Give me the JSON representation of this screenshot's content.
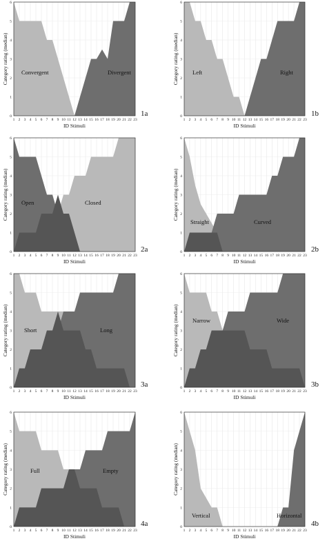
{
  "figure": {
    "xlabel": "ID Stimuli",
    "ylabel": "Category rating (median)"
  },
  "chart_data": [
    {
      "id": "1a",
      "type": "area",
      "x": [
        1,
        2,
        3,
        4,
        5,
        6,
        7,
        8,
        9,
        10,
        11,
        12,
        13,
        14,
        15,
        16,
        17,
        18,
        19,
        20,
        21,
        22,
        23
      ],
      "xlim": [
        1,
        23
      ],
      "ylim": [
        0,
        6
      ],
      "series": [
        {
          "name": "Convergent",
          "color": "#b9b9b9",
          "values": [
            6,
            5,
            5,
            5,
            5,
            5,
            4,
            4,
            3,
            2,
            1,
            0,
            0,
            0,
            0,
            0,
            0,
            0,
            0,
            0,
            0,
            0,
            0
          ]
        },
        {
          "name": "Divergent",
          "color": "#6e6e6e",
          "values": [
            0,
            0,
            0,
            0,
            0,
            0,
            0,
            0,
            0,
            0,
            0,
            0,
            1,
            2,
            3,
            3,
            3.5,
            3,
            5,
            5,
            5,
            6,
            6
          ]
        }
      ]
    },
    {
      "id": "1b",
      "type": "area",
      "x": [
        1,
        2,
        3,
        4,
        5,
        6,
        7,
        8,
        9,
        10,
        11,
        12,
        13,
        14,
        15,
        16,
        17,
        18,
        19,
        20,
        21,
        22,
        23
      ],
      "xlim": [
        1,
        23
      ],
      "ylim": [
        0,
        6
      ],
      "series": [
        {
          "name": "Left",
          "color": "#b9b9b9",
          "values": [
            6,
            6,
            5,
            5,
            4,
            4,
            3,
            3,
            2,
            1,
            1,
            0,
            0,
            0,
            0,
            0,
            0,
            0,
            0,
            0,
            0,
            0,
            0
          ]
        },
        {
          "name": "Right",
          "color": "#6e6e6e",
          "values": [
            0,
            0,
            0,
            0,
            0,
            0,
            0,
            0,
            0,
            0,
            0,
            0,
            1,
            2,
            3,
            3,
            4,
            5,
            5,
            5,
            5,
            6,
            6
          ]
        }
      ]
    },
    {
      "id": "2a",
      "type": "area",
      "x": [
        1,
        2,
        3,
        4,
        5,
        6,
        7,
        8,
        9,
        10,
        11,
        12,
        13,
        14,
        15,
        16,
        17,
        18,
        19,
        20,
        21,
        22,
        23
      ],
      "xlim": [
        1,
        23
      ],
      "ylim": [
        0,
        6
      ],
      "series": [
        {
          "name": "Open",
          "color": "#b9b9b9",
          "values": [
            0,
            0,
            0,
            0,
            0,
            0,
            0,
            0,
            2,
            3,
            3,
            4,
            4,
            4,
            5,
            5,
            5,
            5,
            5,
            6,
            6,
            6,
            6
          ]
        },
        {
          "name": "Closed",
          "color": "#6e6e6e",
          "values": [
            6,
            5,
            5,
            5,
            5,
            4,
            3,
            3,
            2,
            2,
            1,
            0,
            0,
            0,
            0,
            0,
            0,
            0,
            0,
            0,
            0,
            0,
            0
          ]
        },
        {
          "name": "",
          "color": "#555555",
          "values": [
            0,
            1,
            1,
            1,
            1,
            2,
            2,
            2,
            3,
            2,
            2,
            1,
            0,
            0,
            0,
            0,
            0,
            0,
            0,
            0,
            0,
            0,
            0
          ]
        }
      ]
    },
    {
      "id": "2b",
      "type": "area",
      "x": [
        1,
        2,
        3,
        4,
        5,
        6,
        7,
        8,
        9,
        10,
        11,
        12,
        13,
        14,
        15,
        16,
        17,
        18,
        19,
        20,
        21,
        22,
        23
      ],
      "xlim": [
        1,
        23
      ],
      "ylim": [
        0,
        6
      ],
      "series": [
        {
          "name": "Straight",
          "color": "#b9b9b9",
          "values": [
            6,
            5,
            3.5,
            2.5,
            2,
            1.5,
            1,
            0,
            0,
            0,
            0,
            0,
            0,
            0,
            0,
            0,
            0,
            0,
            0,
            0,
            0,
            0,
            0
          ]
        },
        {
          "name": "Curved",
          "color": "#6e6e6e",
          "values": [
            0,
            0,
            0,
            1,
            1,
            1,
            2,
            2,
            2,
            2,
            3,
            3,
            3,
            3,
            3,
            3,
            4,
            4,
            5,
            5,
            5,
            6,
            6
          ]
        },
        {
          "name": "",
          "color": "#555555",
          "values": [
            0,
            1,
            1,
            1,
            1,
            1,
            1,
            0,
            0,
            0,
            0,
            0,
            0,
            0,
            0,
            0,
            0,
            0,
            0,
            0,
            0,
            0,
            0
          ]
        }
      ]
    },
    {
      "id": "3a",
      "type": "area",
      "x": [
        1,
        2,
        3,
        4,
        5,
        6,
        7,
        8,
        9,
        10,
        11,
        12,
        13,
        14,
        15,
        16,
        17,
        18,
        19,
        20,
        21,
        22,
        23
      ],
      "xlim": [
        1,
        23
      ],
      "ylim": [
        0,
        6
      ],
      "series": [
        {
          "name": "Short",
          "color": "#b9b9b9",
          "values": [
            6,
            6,
            5,
            5,
            5,
            4,
            4,
            4,
            4,
            4,
            4,
            4,
            4,
            3,
            3,
            2,
            2,
            1,
            1,
            1,
            1,
            0,
            0
          ]
        },
        {
          "name": "Long",
          "color": "#6e6e6e",
          "values": [
            0,
            1,
            1,
            2,
            2,
            2,
            3,
            3,
            3,
            4,
            4,
            4,
            5,
            5,
            5,
            5,
            5,
            5,
            5,
            6,
            6,
            6,
            6
          ]
        },
        {
          "name": "",
          "color": "#555555",
          "values": [
            0,
            1,
            1,
            2,
            2,
            2,
            3,
            3,
            4,
            3,
            3,
            3,
            3,
            2,
            2,
            1,
            1,
            1,
            1,
            1,
            1,
            0,
            0
          ]
        }
      ]
    },
    {
      "id": "3b",
      "type": "area",
      "x": [
        1,
        2,
        3,
        4,
        5,
        6,
        7,
        8,
        9,
        10,
        11,
        12,
        13,
        14,
        15,
        16,
        17,
        18,
        19,
        20,
        21,
        22,
        23
      ],
      "xlim": [
        1,
        23
      ],
      "ylim": [
        0,
        6
      ],
      "series": [
        {
          "name": "Narrow",
          "color": "#b9b9b9",
          "values": [
            6,
            5,
            5,
            5,
            5,
            4,
            4,
            3,
            3,
            3,
            3,
            3,
            2,
            2,
            2,
            2,
            1,
            1,
            1,
            1,
            1,
            1,
            0
          ]
        },
        {
          "name": "Wide",
          "color": "#6e6e6e",
          "values": [
            0,
            1,
            1,
            2,
            2,
            3,
            3,
            3,
            4,
            4,
            4,
            4,
            5,
            5,
            5,
            5,
            5,
            5,
            6,
            6,
            6,
            6,
            6
          ]
        },
        {
          "name": "",
          "color": "#555555",
          "values": [
            0,
            1,
            1,
            2,
            2,
            3,
            3,
            3,
            3,
            3,
            3,
            3,
            2,
            2,
            2,
            2,
            1,
            1,
            1,
            1,
            1,
            1,
            0
          ]
        }
      ]
    },
    {
      "id": "4a",
      "type": "area",
      "x": [
        1,
        2,
        3,
        4,
        5,
        6,
        7,
        8,
        9,
        10,
        11,
        12,
        13,
        14,
        15,
        16,
        17,
        18,
        19,
        20,
        21,
        22,
        23
      ],
      "xlim": [
        1,
        23
      ],
      "ylim": [
        0,
        6
      ],
      "series": [
        {
          "name": "Full",
          "color": "#b9b9b9",
          "values": [
            6,
            5,
            5,
            5,
            5,
            4,
            4,
            4,
            4,
            3,
            3,
            2,
            2,
            2,
            2,
            2,
            1,
            1,
            1,
            1,
            0,
            0,
            0
          ]
        },
        {
          "name": "Empty",
          "color": "#6e6e6e",
          "values": [
            0,
            1,
            1,
            1,
            1,
            2,
            2,
            2,
            2,
            2,
            3,
            3,
            3,
            4,
            4,
            4,
            4,
            5,
            5,
            5,
            5,
            5,
            6
          ]
        },
        {
          "name": "",
          "color": "#555555",
          "values": [
            0,
            1,
            1,
            1,
            1,
            2,
            2,
            2,
            2,
            2,
            3,
            3,
            2,
            2,
            2,
            2,
            1,
            1,
            1,
            1,
            0,
            0,
            0
          ]
        }
      ]
    },
    {
      "id": "4b",
      "type": "area",
      "x": [
        1,
        2,
        3,
        4,
        5,
        6,
        7,
        8,
        9,
        10,
        11,
        12,
        13,
        14,
        15,
        16,
        17,
        18,
        19,
        20,
        21,
        22,
        23
      ],
      "xlim": [
        1,
        23
      ],
      "ylim": [
        0,
        6
      ],
      "series": [
        {
          "name": "Vertical",
          "color": "#b9b9b9",
          "values": [
            6,
            5,
            4,
            2,
            1.5,
            1,
            1,
            0,
            0,
            0,
            0,
            0,
            0,
            0,
            0,
            0,
            0,
            0,
            0,
            0,
            0,
            0,
            0
          ]
        },
        {
          "name": "Horizontal",
          "color": "#6e6e6e",
          "values": [
            0,
            0,
            0,
            0,
            0,
            0,
            0,
            0,
            0,
            0,
            0,
            0,
            0,
            0,
            0,
            0,
            0,
            0,
            1,
            1,
            4,
            5,
            6
          ]
        }
      ]
    }
  ]
}
